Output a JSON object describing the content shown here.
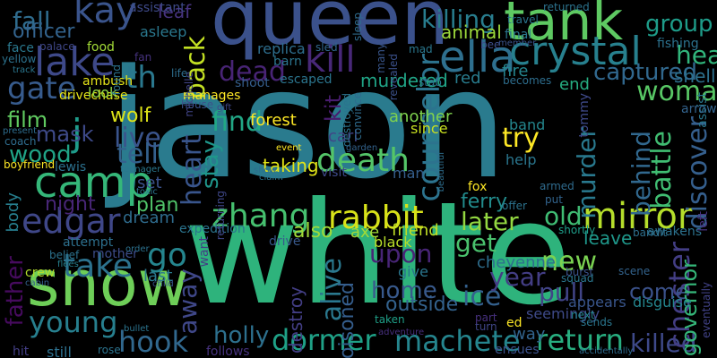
{
  "words": [
    {
      "t": "jason",
      "c": "#2a7b8e"
    },
    {
      "t": "white",
      "c": "#2eb37c"
    },
    {
      "t": "snow",
      "c": "#6ece58"
    },
    {
      "t": "queen",
      "c": "#3b518b"
    },
    {
      "t": "tank",
      "c": "#5ec962"
    },
    {
      "t": "camp",
      "c": "#35b779"
    },
    {
      "t": "crystal",
      "c": "#27808e"
    },
    {
      "t": "lake",
      "c": "#3e4989"
    },
    {
      "t": "kay",
      "c": "#3a548c"
    },
    {
      "t": "ella",
      "c": "#2e6f8e"
    },
    {
      "t": "kill",
      "c": "#482878"
    },
    {
      "t": "mirror",
      "c": "#b5de2b"
    },
    {
      "t": "take",
      "c": "#2c728e"
    },
    {
      "t": "edgar",
      "c": "#3f4788"
    },
    {
      "t": "dormer",
      "c": "#1fa187"
    },
    {
      "t": "machete",
      "c": "#25858e"
    },
    {
      "t": "hook",
      "c": "#31688e"
    },
    {
      "t": "zhang",
      "c": "#46c06f"
    },
    {
      "t": "rabbit",
      "c": "#d8e219"
    },
    {
      "t": "death",
      "c": "#54c568"
    },
    {
      "t": "counselor",
      "c": "#2c738e"
    },
    {
      "t": "return",
      "c": "#28ae80"
    },
    {
      "t": "killed",
      "c": "#3e4989"
    },
    {
      "t": "chester",
      "c": "#433e85"
    },
    {
      "t": "discover",
      "c": "#355f8d"
    },
    {
      "t": "woman",
      "c": "#58c765"
    },
    {
      "t": "killing",
      "c": "#287d8e"
    },
    {
      "t": "gate",
      "c": "#375b8d"
    },
    {
      "t": "fall",
      "c": "#2f6c8e"
    },
    {
      "t": "dead",
      "c": "#482475"
    },
    {
      "t": "find",
      "c": "#22a785"
    },
    {
      "t": "back",
      "c": "#c2df23"
    },
    {
      "t": "heart",
      "c": "#39558c"
    },
    {
      "t": "stay",
      "c": "#1f968b"
    },
    {
      "t": "live",
      "c": "#3a548c"
    },
    {
      "t": "tell",
      "c": "#34618d"
    },
    {
      "t": "j",
      "c": "#1e9b8a"
    },
    {
      "t": "wood",
      "c": "#20a386"
    },
    {
      "t": "film",
      "c": "#60ca60"
    },
    {
      "t": "young",
      "c": "#277f8e"
    },
    {
      "t": "father",
      "c": "#460b5e"
    },
    {
      "t": "holly",
      "c": "#2d708e"
    },
    {
      "t": "away",
      "c": "#3f4788"
    },
    {
      "t": "go",
      "c": "#25858e"
    },
    {
      "t": "alive",
      "c": "#2a788e"
    },
    {
      "t": "upon",
      "c": "#482576"
    },
    {
      "t": "home",
      "c": "#38598c"
    },
    {
      "t": "ice",
      "c": "#34608d"
    },
    {
      "t": "get",
      "c": "#4ac16d"
    },
    {
      "t": "later",
      "c": "#93d741"
    },
    {
      "t": "year",
      "c": "#433d84"
    },
    {
      "t": "new",
      "c": "#7ad151"
    },
    {
      "t": "pull",
      "c": "#414487"
    },
    {
      "t": "come",
      "c": "#3b528b"
    },
    {
      "t": "old",
      "c": "#3fbc73"
    },
    {
      "t": "behind",
      "c": "#31688e"
    },
    {
      "t": "battle",
      "c": "#40bd72"
    },
    {
      "t": "murder",
      "c": "#29798e"
    },
    {
      "t": "try",
      "c": "#fde725"
    },
    {
      "t": "head",
      "c": "#31b57b"
    },
    {
      "t": "group",
      "c": "#1e9c89"
    },
    {
      "t": "captured",
      "c": "#31688e"
    },
    {
      "t": "th",
      "c": "#2a788e"
    },
    {
      "t": "mask",
      "c": "#3e4a89"
    },
    {
      "t": "wolf",
      "c": "#dde318"
    },
    {
      "t": "night",
      "c": "#482677"
    },
    {
      "t": "kit",
      "c": "#481c6e"
    },
    {
      "t": "officer",
      "c": "#33638d"
    },
    {
      "t": "leaf",
      "c": "#46337e"
    },
    {
      "t": "animal",
      "c": "#9dd93b"
    },
    {
      "t": "end",
      "c": "#26ad81"
    },
    {
      "t": "shell",
      "c": "#2d718e"
    },
    {
      "t": "governor",
      "c": "#35b779"
    },
    {
      "t": "ferry",
      "c": "#228c8d"
    },
    {
      "t": "cheyenne",
      "c": "#2e6e8e"
    },
    {
      "t": "leave",
      "c": "#1f988b"
    },
    {
      "t": "outside",
      "c": "#33628d"
    },
    {
      "t": "poisoned",
      "c": "#355e8d"
    },
    {
      "t": "destroy",
      "c": "#433e85"
    },
    {
      "t": "another",
      "c": "#7fd34e"
    },
    {
      "t": "forest",
      "c": "#fde725"
    },
    {
      "t": "taking",
      "c": "#e2e418"
    },
    {
      "t": "murdered",
      "c": "#20a486"
    },
    {
      "t": "also",
      "c": "#a0da39"
    },
    {
      "t": "plan",
      "c": "#50c46a"
    },
    {
      "t": "dream",
      "c": "#2f6c8e"
    },
    {
      "t": "set",
      "c": "#3b528b"
    },
    {
      "t": "last",
      "c": "#2a788e"
    },
    {
      "t": "shortly",
      "c": "#1e9d89"
    },
    {
      "t": "appears",
      "c": "#39568c"
    },
    {
      "t": "seemingly",
      "c": "#3e4a89"
    },
    {
      "t": "way",
      "c": "#32648e"
    },
    {
      "t": "sends",
      "c": "#2a768e"
    },
    {
      "t": "next",
      "c": "#24868e"
    },
    {
      "t": "disguise",
      "c": "#24868e"
    },
    {
      "t": "ed",
      "c": "#fde725"
    },
    {
      "t": "ensues",
      "c": "#3b518b"
    },
    {
      "t": "rose",
      "c": "#2c738e"
    },
    {
      "t": "still",
      "c": "#2d708e"
    },
    {
      "t": "hit",
      "c": "#433e85"
    },
    {
      "t": "follows",
      "c": "#46327e"
    },
    {
      "t": "adventure",
      "c": "#472f7d"
    },
    {
      "t": "turn",
      "c": "#404688"
    },
    {
      "t": "part",
      "c": "#46307e"
    },
    {
      "t": "taken",
      "c": "#1fa088"
    },
    {
      "t": "scene",
      "c": "#33638d"
    },
    {
      "t": "burst",
      "c": "#3b528b"
    },
    {
      "t": "awakens",
      "c": "#2c728e"
    },
    {
      "t": "bandit",
      "c": "#2e6f8e"
    },
    {
      "t": "left",
      "c": "#46327e"
    },
    {
      "t": "eventually",
      "c": "#414287"
    },
    {
      "t": "assist",
      "c": "#2a788e"
    },
    {
      "t": "arrow",
      "c": "#33638d"
    },
    {
      "t": "fire",
      "c": "#25858e"
    },
    {
      "t": "becomes",
      "c": "#2e6e8e"
    },
    {
      "t": "bee",
      "c": "#3d4e8a"
    },
    {
      "t": "member",
      "c": "#3a538b"
    },
    {
      "t": "fishing",
      "c": "#2c728e"
    },
    {
      "t": "final",
      "c": "#2b758e"
    },
    {
      "t": "help",
      "c": "#2a768e"
    },
    {
      "t": "fox",
      "c": "#fde725"
    },
    {
      "t": "offer",
      "c": "#2c738e"
    },
    {
      "t": "put",
      "c": "#32648e"
    },
    {
      "t": "armed",
      "c": "#2f6b8e"
    },
    {
      "t": "band",
      "c": "#24878e"
    },
    {
      "t": "since",
      "c": "#c8e020"
    },
    {
      "t": "red",
      "c": "#287c8e"
    },
    {
      "t": "carl",
      "c": "#414487"
    },
    {
      "t": "man",
      "c": "#355f8d"
    },
    {
      "t": "friend",
      "c": "#c0df25"
    },
    {
      "t": "black",
      "c": "#b8de29"
    },
    {
      "t": "give",
      "c": "#2a768e"
    },
    {
      "t": "axe",
      "c": "#a2da37"
    },
    {
      "t": "visit",
      "c": "#3e4989"
    },
    {
      "t": "drive",
      "c": "#38598c"
    },
    {
      "t": "want",
      "c": "#433e85"
    },
    {
      "t": "expedition",
      "c": "#2b748e"
    },
    {
      "t": "mother",
      "c": "#3d4d8a"
    },
    {
      "t": "attempt",
      "c": "#2d708e"
    },
    {
      "t": "belief",
      "c": "#2c728e"
    },
    {
      "t": "flees",
      "c": "#27808e"
    },
    {
      "t": "crew",
      "c": "#b2dd2d"
    },
    {
      "t": "cabin",
      "c": "#34618d"
    },
    {
      "t": "body",
      "c": "#277e8e"
    },
    {
      "t": "lewis",
      "c": "#2c718e"
    },
    {
      "t": "boyfriend",
      "c": "#fde725"
    },
    {
      "t": "coach",
      "c": "#2f6c8e"
    },
    {
      "t": "present",
      "c": "#2e6d8e"
    },
    {
      "t": "face",
      "c": "#2a788e"
    },
    {
      "t": "yellow",
      "c": "#2c728e"
    },
    {
      "t": "track",
      "c": "#2a768e"
    },
    {
      "t": "ambush",
      "c": "#e5e419"
    },
    {
      "t": "drivechase",
      "c": "#e5e419"
    },
    {
      "t": "look",
      "c": "#90d743"
    },
    {
      "t": "manages",
      "c": "#fde725"
    },
    {
      "t": "found",
      "c": "#2c738e"
    },
    {
      "t": "fan",
      "c": "#46327e"
    },
    {
      "t": "asleep",
      "c": "#2a788e"
    },
    {
      "t": "assistant",
      "c": "#3e4a89"
    },
    {
      "t": "palace",
      "c": "#3f4788"
    },
    {
      "t": "food",
      "c": "#a2da37"
    },
    {
      "t": "replica",
      "c": "#2e6e8e"
    },
    {
      "t": "barn",
      "c": "#2b748e"
    },
    {
      "t": "sled",
      "c": "#31688e"
    },
    {
      "t": "sleep",
      "c": "#2f6c8e"
    },
    {
      "t": "escaped",
      "c": "#2b758e"
    },
    {
      "t": "shoot",
      "c": "#355e8d"
    },
    {
      "t": "michelle",
      "c": "#414487"
    },
    {
      "t": "house",
      "c": "#3b528b"
    },
    {
      "t": "gift",
      "c": "#3f4788"
    },
    {
      "t": "life",
      "c": "#2e6e8e"
    },
    {
      "t": "many",
      "c": "#39568c"
    },
    {
      "t": "revealed",
      "c": "#3b518b"
    },
    {
      "t": "mad",
      "c": "#2a788e"
    },
    {
      "t": "stab",
      "c": "#2c728e"
    },
    {
      "t": "destroyed",
      "c": "#2b748e"
    },
    {
      "t": "convince",
      "c": "#2f6c8e"
    },
    {
      "t": "garden",
      "c": "#33638d"
    },
    {
      "t": "event",
      "c": "#fde725"
    },
    {
      "t": "show",
      "c": "#2e6e8e"
    },
    {
      "t": "claim",
      "c": "#2b748e"
    },
    {
      "t": "returning",
      "c": "#3f4788"
    },
    {
      "t": "toxic",
      "c": "#2c738e"
    },
    {
      "t": "teenager",
      "c": "#2a788e"
    },
    {
      "t": "tommy",
      "c": "#3e4989"
    },
    {
      "t": "travel",
      "c": "#2b758e"
    },
    {
      "t": "returned",
      "c": "#2c738e"
    },
    {
      "t": "beautiful",
      "c": "#2e6e8e"
    },
    {
      "t": "accidentally",
      "c": "#2f6b8e"
    },
    {
      "t": "child",
      "c": "#39568c"
    },
    {
      "t": "order",
      "c": "#2c718e"
    },
    {
      "t": "bullet",
      "c": "#2b748e"
    },
    {
      "t": "squad",
      "c": "#2a778e"
    }
  ]
}
